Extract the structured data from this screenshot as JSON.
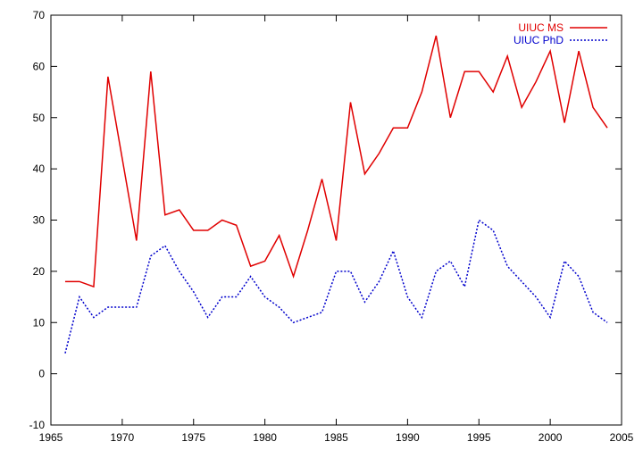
{
  "chart_data": {
    "type": "line",
    "title": "",
    "xlabel": "",
    "ylabel": "",
    "xlim": [
      1965,
      2005
    ],
    "ylim": [
      -10,
      70
    ],
    "xticks": [
      1965,
      1970,
      1975,
      1980,
      1985,
      1990,
      1995,
      2000,
      2005
    ],
    "yticks": [
      -10,
      0,
      10,
      20,
      30,
      40,
      50,
      60,
      70
    ],
    "grid": false,
    "legend_position": "top-right",
    "series": [
      {
        "name": "UIUC MS",
        "color": "#e00000",
        "style": "solid",
        "x": [
          1966,
          1967,
          1968,
          1969,
          1970,
          1971,
          1972,
          1973,
          1974,
          1975,
          1976,
          1977,
          1978,
          1979,
          1980,
          1981,
          1982,
          1983,
          1984,
          1985,
          1986,
          1987,
          1988,
          1989,
          1990,
          1991,
          1992,
          1993,
          1994,
          1995,
          1996,
          1997,
          1998,
          1999,
          2000,
          2001,
          2002,
          2003,
          2004
        ],
        "values": [
          18,
          18,
          17,
          58,
          42,
          26,
          59,
          31,
          32,
          28,
          28,
          30,
          29,
          21,
          22,
          27,
          19,
          28,
          38,
          26,
          53,
          39,
          43,
          48,
          48,
          55,
          66,
          50,
          59,
          59,
          55,
          62,
          52,
          57,
          63,
          49,
          63,
          52,
          48
        ]
      },
      {
        "name": "UIUC PhD",
        "color": "#0000cc",
        "style": "dotted",
        "x": [
          1966,
          1967,
          1968,
          1969,
          1970,
          1971,
          1972,
          1973,
          1974,
          1975,
          1976,
          1977,
          1978,
          1979,
          1980,
          1981,
          1982,
          1983,
          1984,
          1985,
          1986,
          1987,
          1988,
          1989,
          1990,
          1991,
          1992,
          1993,
          1994,
          1995,
          1996,
          1997,
          1998,
          1999,
          2000,
          2001,
          2002,
          2003,
          2004
        ],
        "values": [
          4,
          15,
          11,
          13,
          13,
          13,
          23,
          25,
          20,
          16,
          11,
          15,
          15,
          19,
          15,
          13,
          10,
          11,
          12,
          20,
          20,
          14,
          18,
          24,
          15,
          11,
          20,
          22,
          17,
          30,
          28,
          21,
          18,
          15,
          11,
          22,
          19,
          12,
          10
        ]
      }
    ]
  }
}
